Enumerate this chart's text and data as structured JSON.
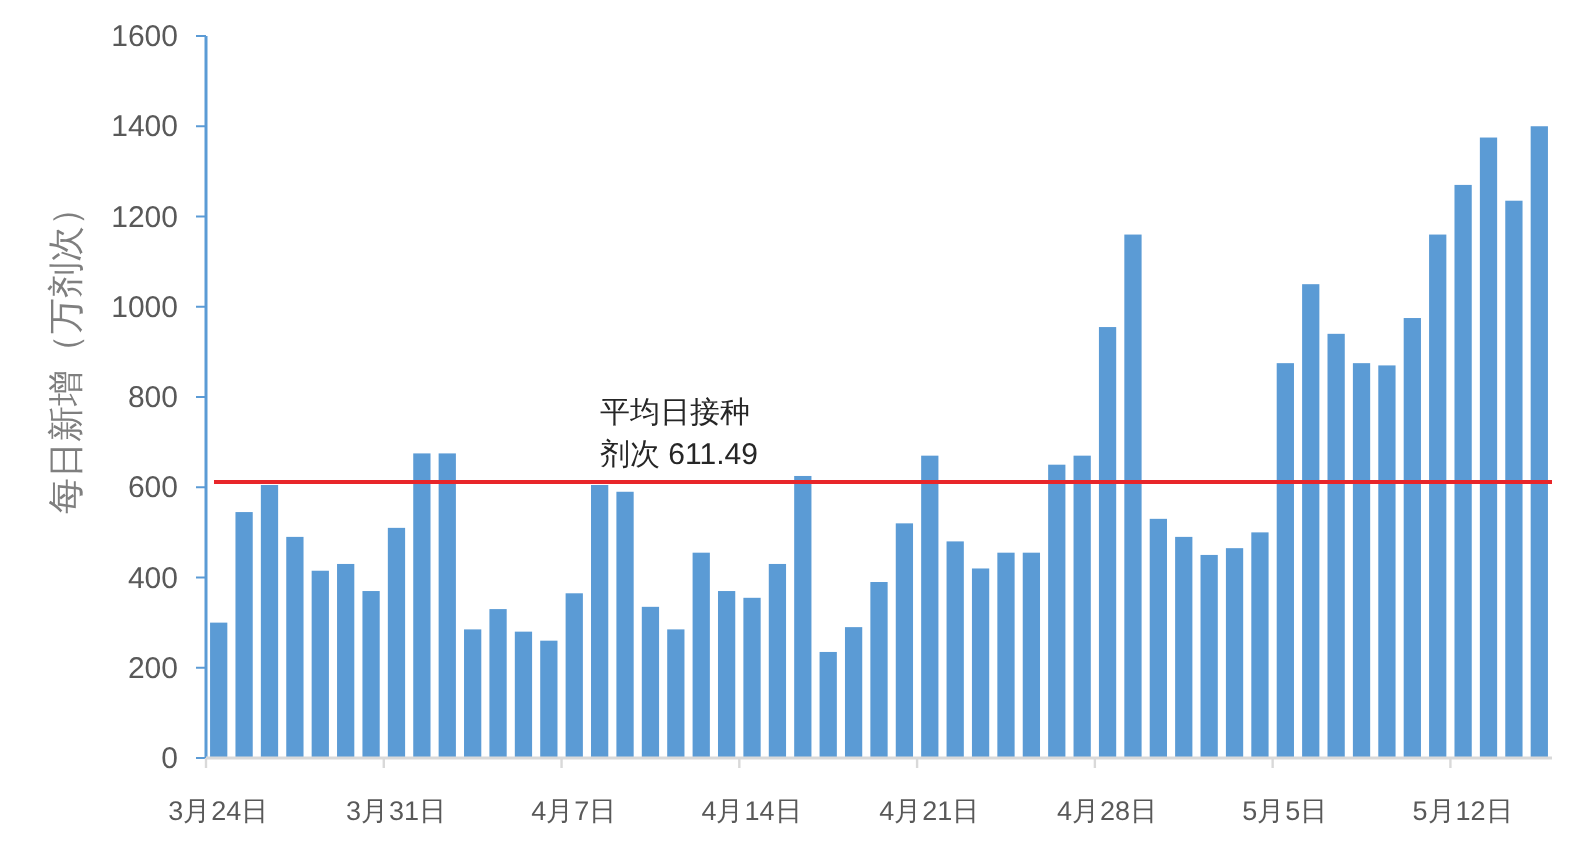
{
  "chart_data": {
    "type": "bar",
    "ylabel": "每日新增（万剂次）",
    "categories": [
      "3月24日",
      null,
      null,
      null,
      null,
      null,
      null,
      "3月31日",
      null,
      null,
      null,
      null,
      null,
      null,
      "4月7日",
      null,
      null,
      null,
      null,
      null,
      null,
      "4月14日",
      null,
      null,
      null,
      null,
      null,
      null,
      "4月21日",
      null,
      null,
      null,
      null,
      null,
      null,
      "4月28日",
      null,
      null,
      null,
      null,
      null,
      null,
      "5月5日",
      null,
      null,
      null,
      null,
      null,
      null,
      "5月12日",
      null,
      null,
      null
    ],
    "values": [
      300,
      545,
      605,
      490,
      415,
      430,
      370,
      510,
      675,
      675,
      285,
      330,
      280,
      260,
      365,
      605,
      590,
      335,
      285,
      455,
      370,
      355,
      430,
      625,
      235,
      290,
      390,
      520,
      670,
      480,
      420,
      455,
      455,
      650,
      670,
      955,
      1160,
      530,
      490,
      450,
      465,
      500,
      875,
      1050,
      940,
      875,
      870,
      975,
      1160,
      1270,
      1375,
      1235,
      1400
    ],
    "color": "#5b9bd5",
    "ylim": [
      0,
      1600
    ],
    "yticks": [
      0,
      200,
      400,
      600,
      800,
      1000,
      1200,
      1400,
      1600
    ],
    "ref_lines": [
      {
        "axis": "y",
        "value": 611.49,
        "label": "平均日接种剂次 611.49",
        "color": "#e8262a"
      }
    ]
  }
}
